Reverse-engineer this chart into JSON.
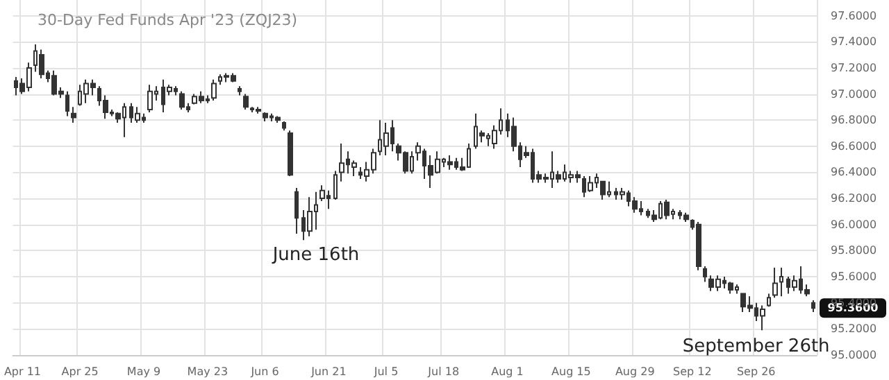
{
  "chart_data": {
    "type": "candlestick",
    "title": "30-Day Fed Funds Apr '23 (ZQJ23)",
    "color": "#333333",
    "categories": [
      null,
      "Apr 11",
      null,
      null,
      null,
      null,
      null,
      null,
      null,
      null,
      "Apr 25",
      null,
      null,
      null,
      null,
      null,
      null,
      null,
      null,
      null,
      "May 9",
      null,
      null,
      null,
      null,
      null,
      null,
      null,
      null,
      null,
      "May 23",
      null,
      null,
      null,
      null,
      null,
      null,
      null,
      null,
      "Jun 6",
      null,
      null,
      null,
      null,
      null,
      null,
      null,
      null,
      null,
      "Jun 21",
      null,
      null,
      null,
      null,
      null,
      null,
      null,
      null,
      "Jul 5",
      null,
      null,
      null,
      null,
      null,
      null,
      null,
      null,
      "Jul 18",
      null,
      null,
      null,
      null,
      null,
      null,
      null,
      null,
      null,
      "Aug 1",
      null,
      null,
      null,
      null,
      null,
      null,
      null,
      null,
      null,
      "Aug 15",
      null,
      null,
      null,
      null,
      null,
      null,
      null,
      null,
      null,
      "Aug 29",
      null,
      null,
      null,
      null,
      null,
      null,
      null,
      null,
      "Sep 12",
      null,
      null,
      null,
      null,
      null,
      null,
      null,
      null,
      null,
      "Sep 26",
      null,
      null,
      null,
      null,
      null,
      null,
      null,
      null,
      null
    ],
    "ohlc": [
      [
        97.1,
        97.13,
        96.99,
        97.05
      ],
      [
        97.08,
        97.12,
        97.0,
        97.02
      ],
      [
        97.05,
        97.24,
        97.02,
        97.2
      ],
      [
        97.22,
        97.38,
        97.17,
        97.33
      ],
      [
        97.3,
        97.34,
        97.12,
        97.15
      ],
      [
        97.16,
        97.18,
        97.09,
        97.12
      ],
      [
        97.14,
        97.18,
        96.99,
        97.0
      ],
      [
        97.02,
        97.05,
        96.97,
        97.0
      ],
      [
        96.99,
        97.02,
        96.83,
        96.87
      ],
      [
        96.85,
        96.9,
        96.78,
        96.82
      ],
      [
        96.92,
        97.07,
        96.91,
        97.02
      ],
      [
        97.0,
        97.11,
        96.93,
        97.08
      ],
      [
        97.08,
        97.11,
        96.99,
        97.05
      ],
      [
        97.04,
        97.06,
        96.91,
        96.95
      ],
      [
        96.95,
        96.99,
        96.81,
        96.86
      ],
      [
        96.86,
        96.88,
        96.83,
        96.85
      ],
      [
        96.85,
        96.86,
        96.78,
        96.81
      ],
      [
        96.82,
        96.93,
        96.67,
        96.9
      ],
      [
        96.9,
        96.93,
        96.78,
        96.82
      ],
      [
        96.8,
        96.9,
        96.78,
        96.85
      ],
      [
        96.82,
        96.85,
        96.78,
        96.8
      ],
      [
        96.88,
        97.07,
        96.86,
        97.02
      ],
      [
        97.0,
        97.06,
        96.95,
        97.02
      ],
      [
        97.05,
        97.11,
        96.86,
        96.92
      ],
      [
        97.02,
        97.07,
        96.99,
        97.05
      ],
      [
        97.04,
        97.06,
        96.99,
        97.02
      ],
      [
        97.0,
        97.02,
        96.88,
        96.9
      ],
      [
        96.9,
        96.93,
        96.86,
        96.88
      ],
      [
        96.93,
        97.0,
        96.92,
        96.98
      ],
      [
        96.98,
        97.02,
        96.93,
        96.95
      ],
      [
        96.95,
        96.99,
        96.93,
        96.96
      ],
      [
        96.97,
        97.11,
        96.95,
        97.08
      ],
      [
        97.1,
        97.15,
        97.07,
        97.13
      ],
      [
        97.13,
        97.16,
        97.09,
        97.14
      ],
      [
        97.14,
        97.16,
        97.09,
        97.1
      ],
      [
        97.04,
        97.06,
        96.99,
        97.02
      ],
      [
        96.98,
        97.0,
        96.88,
        96.9
      ],
      [
        96.89,
        96.9,
        96.86,
        96.88
      ],
      [
        96.88,
        96.9,
        96.85,
        96.87
      ],
      [
        96.85,
        96.86,
        96.79,
        96.82
      ],
      [
        96.83,
        96.85,
        96.79,
        96.82
      ],
      [
        96.82,
        96.83,
        96.78,
        96.8
      ],
      [
        96.78,
        96.79,
        96.72,
        96.74
      ],
      [
        96.7,
        96.72,
        96.37,
        96.38
      ],
      [
        96.25,
        96.28,
        95.93,
        96.05
      ],
      [
        96.05,
        96.11,
        95.88,
        95.95
      ],
      [
        95.95,
        96.21,
        95.91,
        96.1
      ],
      [
        96.1,
        96.25,
        95.96,
        96.15
      ],
      [
        96.2,
        96.3,
        96.18,
        96.26
      ],
      [
        96.22,
        96.26,
        96.12,
        96.2
      ],
      [
        96.2,
        96.41,
        96.19,
        96.38
      ],
      [
        96.4,
        96.62,
        96.33,
        96.47
      ],
      [
        96.5,
        96.56,
        96.39,
        96.46
      ],
      [
        96.44,
        96.49,
        96.37,
        96.47
      ],
      [
        96.4,
        96.44,
        96.35,
        96.38
      ],
      [
        96.37,
        96.48,
        96.33,
        96.42
      ],
      [
        96.42,
        96.58,
        96.39,
        96.55
      ],
      [
        96.56,
        96.8,
        96.53,
        96.65
      ],
      [
        96.6,
        96.78,
        96.53,
        96.7
      ],
      [
        96.74,
        96.8,
        96.56,
        96.62
      ],
      [
        96.6,
        96.62,
        96.49,
        96.55
      ],
      [
        96.55,
        96.56,
        96.39,
        96.41
      ],
      [
        96.41,
        96.56,
        96.39,
        96.52
      ],
      [
        96.55,
        96.63,
        96.49,
        96.6
      ],
      [
        96.56,
        96.58,
        96.35,
        96.45
      ],
      [
        96.45,
        96.53,
        96.28,
        96.38
      ],
      [
        96.4,
        96.56,
        96.39,
        96.5
      ],
      [
        96.48,
        96.51,
        96.44,
        96.5
      ],
      [
        96.48,
        96.53,
        96.42,
        96.46
      ],
      [
        96.48,
        96.51,
        96.42,
        96.44
      ],
      [
        96.44,
        96.51,
        96.41,
        96.42
      ],
      [
        96.44,
        96.62,
        96.44,
        96.58
      ],
      [
        96.6,
        96.85,
        96.58,
        96.75
      ],
      [
        96.7,
        96.72,
        96.63,
        96.68
      ],
      [
        96.66,
        96.7,
        96.6,
        96.68
      ],
      [
        96.62,
        96.76,
        96.58,
        96.72
      ],
      [
        96.72,
        96.89,
        96.69,
        96.8
      ],
      [
        96.8,
        96.85,
        96.67,
        96.72
      ],
      [
        96.75,
        96.82,
        96.56,
        96.6
      ],
      [
        96.6,
        96.63,
        96.44,
        96.5
      ],
      [
        96.55,
        96.6,
        96.51,
        96.53
      ],
      [
        96.55,
        96.58,
        96.32,
        96.35
      ],
      [
        96.38,
        96.41,
        96.32,
        96.35
      ],
      [
        96.35,
        96.39,
        96.32,
        96.36
      ],
      [
        96.35,
        96.56,
        96.28,
        96.4
      ],
      [
        96.38,
        96.41,
        96.32,
        96.35
      ],
      [
        96.35,
        96.46,
        96.33,
        96.4
      ],
      [
        96.36,
        96.41,
        96.32,
        96.38
      ],
      [
        96.38,
        96.41,
        96.32,
        96.36
      ],
      [
        96.35,
        96.37,
        96.21,
        96.25
      ],
      [
        96.26,
        96.37,
        96.25,
        96.32
      ],
      [
        96.32,
        96.39,
        96.28,
        96.36
      ],
      [
        96.33,
        96.33,
        96.19,
        96.23
      ],
      [
        96.23,
        96.33,
        96.21,
        96.25
      ],
      [
        96.25,
        96.28,
        96.19,
        96.23
      ],
      [
        96.23,
        96.28,
        96.19,
        96.25
      ],
      [
        96.24,
        96.26,
        96.14,
        96.18
      ],
      [
        96.18,
        96.21,
        96.09,
        96.12
      ],
      [
        96.12,
        96.18,
        96.07,
        96.1
      ],
      [
        96.1,
        96.12,
        96.05,
        96.07
      ],
      [
        96.07,
        96.11,
        96.02,
        96.04
      ],
      [
        96.05,
        96.18,
        96.04,
        96.16
      ],
      [
        96.17,
        96.19,
        96.04,
        96.07
      ],
      [
        96.08,
        96.12,
        96.04,
        96.1
      ],
      [
        96.09,
        96.11,
        96.04,
        96.07
      ],
      [
        96.07,
        96.09,
        96.02,
        96.04
      ],
      [
        96.03,
        96.04,
        95.96,
        95.98
      ],
      [
        96.0,
        96.02,
        95.65,
        95.68
      ],
      [
        95.66,
        95.68,
        95.56,
        95.6
      ],
      [
        95.58,
        95.61,
        95.49,
        95.52
      ],
      [
        95.52,
        95.61,
        95.49,
        95.58
      ],
      [
        95.57,
        95.6,
        95.51,
        95.55
      ],
      [
        95.55,
        95.56,
        95.47,
        95.5
      ],
      [
        95.5,
        95.54,
        95.47,
        95.52
      ],
      [
        95.47,
        95.47,
        95.33,
        95.37
      ],
      [
        95.38,
        95.45,
        95.33,
        95.36
      ],
      [
        95.36,
        95.4,
        95.26,
        95.3
      ],
      [
        95.3,
        95.38,
        95.19,
        95.35
      ],
      [
        95.38,
        95.47,
        95.37,
        95.44
      ],
      [
        95.46,
        95.67,
        95.44,
        95.55
      ],
      [
        95.56,
        95.67,
        95.45,
        95.6
      ],
      [
        95.58,
        95.6,
        95.47,
        95.52
      ],
      [
        95.52,
        95.61,
        95.49,
        95.57
      ],
      [
        95.58,
        95.68,
        95.47,
        95.5
      ],
      [
        95.5,
        95.54,
        95.45,
        95.47
      ],
      [
        95.4,
        95.42,
        95.33,
        95.36
      ]
    ],
    "ylim": [
      95.0,
      97.72
    ],
    "yticks": [
      {
        "value": 95.0,
        "label": "95.0000"
      },
      {
        "value": 95.2,
        "label": "95.2000"
      },
      {
        "value": 95.4,
        "label": "95.4000"
      },
      {
        "value": 95.6,
        "label": "95.6000"
      },
      {
        "value": 95.8,
        "label": "95.8000"
      },
      {
        "value": 96.0,
        "label": "96.0000"
      },
      {
        "value": 96.2,
        "label": "96.2000"
      },
      {
        "value": 96.4,
        "label": "96.4000"
      },
      {
        "value": 96.6,
        "label": "96.6000"
      },
      {
        "value": 96.8,
        "label": "96.8000"
      },
      {
        "value": 97.0,
        "label": "97.0000"
      },
      {
        "value": 97.2,
        "label": "97.2000"
      },
      {
        "value": 97.4,
        "label": "97.4000"
      },
      {
        "value": 97.6,
        "label": "97.6000"
      }
    ],
    "grid": true,
    "annotations": [
      {
        "text": "June 16th",
        "y": 95.96
      },
      {
        "text": "September 26th",
        "y": 95.26
      },
      "95.3600"
    ]
  }
}
